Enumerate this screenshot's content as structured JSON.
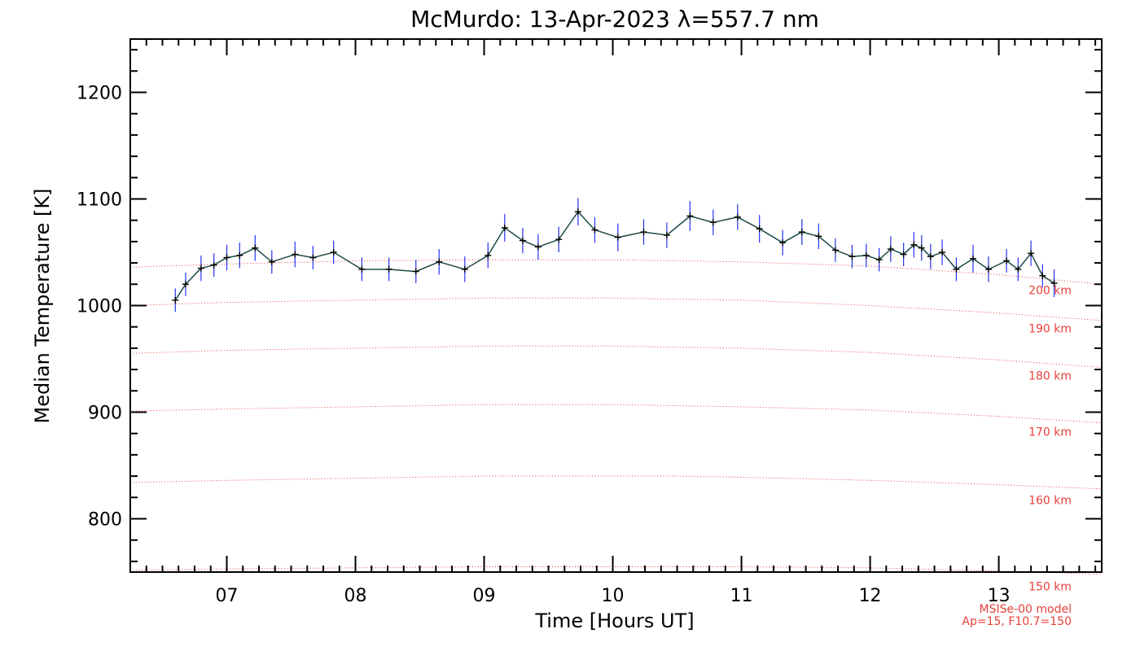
{
  "chart_data": {
    "type": "line",
    "title": "McMurdo: 13-Apr-2023 λ=557.7 nm",
    "xlabel": "Time [Hours UT]",
    "ylabel": "Median Temperature [K]",
    "xlim": [
      6.25,
      13.8
    ],
    "ylim": [
      750,
      1250
    ],
    "x_ticks": [
      7,
      8,
      9,
      10,
      11,
      12,
      13
    ],
    "x_tick_labels": [
      "07",
      "08",
      "09",
      "10",
      "11",
      "12",
      "13"
    ],
    "y_ticks": [
      800,
      900,
      1000,
      1100,
      1200
    ],
    "y_tick_labels": [
      "800",
      "900",
      "1000",
      "1100",
      "1200"
    ],
    "grid": false,
    "series": [
      {
        "type": "line_with_errorbars",
        "color": "#1e4a4a",
        "errorbar_color": "#2233ee",
        "x": [
          6.6,
          6.68,
          6.8,
          6.9,
          7.0,
          7.1,
          7.22,
          7.35,
          7.53,
          7.67,
          7.83,
          8.05,
          8.26,
          8.47,
          8.65,
          8.85,
          9.03,
          9.16,
          9.3,
          9.42,
          9.58,
          9.73,
          9.86,
          10.04,
          10.24,
          10.42,
          10.6,
          10.78,
          10.97,
          11.14,
          11.32,
          11.47,
          11.6,
          11.73,
          11.86,
          11.97,
          12.07,
          12.16,
          12.26,
          12.34,
          12.4,
          12.47,
          12.56,
          12.67,
          12.8,
          12.92,
          13.06,
          13.15,
          13.25,
          13.34,
          13.43
        ],
        "y": [
          1005,
          1020,
          1035,
          1038,
          1045,
          1047,
          1054,
          1041,
          1048,
          1045,
          1050,
          1034,
          1034,
          1032,
          1041,
          1034,
          1047,
          1073,
          1061,
          1055,
          1062,
          1088,
          1071,
          1064,
          1069,
          1066,
          1084,
          1078,
          1083,
          1072,
          1059,
          1069,
          1065,
          1052,
          1046,
          1047,
          1043,
          1053,
          1048,
          1057,
          1054,
          1046,
          1050,
          1034,
          1044,
          1034,
          1042,
          1034,
          1049,
          1028,
          1021
        ],
        "error": [
          11,
          11,
          12,
          11,
          12,
          12,
          12,
          11,
          12,
          11,
          11,
          11,
          11,
          11,
          12,
          12,
          12,
          13,
          12,
          12,
          12,
          13,
          12,
          13,
          12,
          12,
          14,
          12,
          12,
          13,
          12,
          12,
          12,
          11,
          11,
          11,
          11,
          12,
          11,
          12,
          12,
          12,
          12,
          11,
          13,
          12,
          11,
          11,
          12,
          11,
          13
        ]
      }
    ],
    "model_lines": {
      "color": "#e8403a",
      "style": "dotted",
      "x": [
        6.25,
        7.0,
        8.0,
        9.0,
        10.0,
        10.5,
        11.0,
        12.0,
        13.0,
        13.8
      ],
      "lines": [
        {
          "label": "200 km",
          "y": [
            1036,
            1039,
            1042,
            1043,
            1043,
            1042,
            1041,
            1037,
            1029,
            1020
          ]
        },
        {
          "label": "190 km",
          "y": [
            1000,
            1003,
            1005,
            1007,
            1007,
            1006,
            1005,
            1000,
            993,
            986
          ]
        },
        {
          "label": "180 km",
          "y": [
            955,
            958,
            960,
            962,
            962,
            961,
            960,
            956,
            949,
            942
          ]
        },
        {
          "label": "170 km",
          "y": [
            901,
            903,
            905,
            907,
            907,
            906,
            905,
            902,
            896,
            890
          ]
        },
        {
          "label": "160 km",
          "y": [
            834,
            836,
            838,
            840,
            840,
            840,
            839,
            836,
            832,
            828
          ]
        },
        {
          "label": "150 km",
          "y": [
            752,
            753,
            754,
            755,
            755,
            755,
            755,
            754,
            751,
            748
          ]
        }
      ]
    },
    "annotations": [
      "MSISe-00 model",
      "Ap=15, F10.7=150"
    ]
  }
}
